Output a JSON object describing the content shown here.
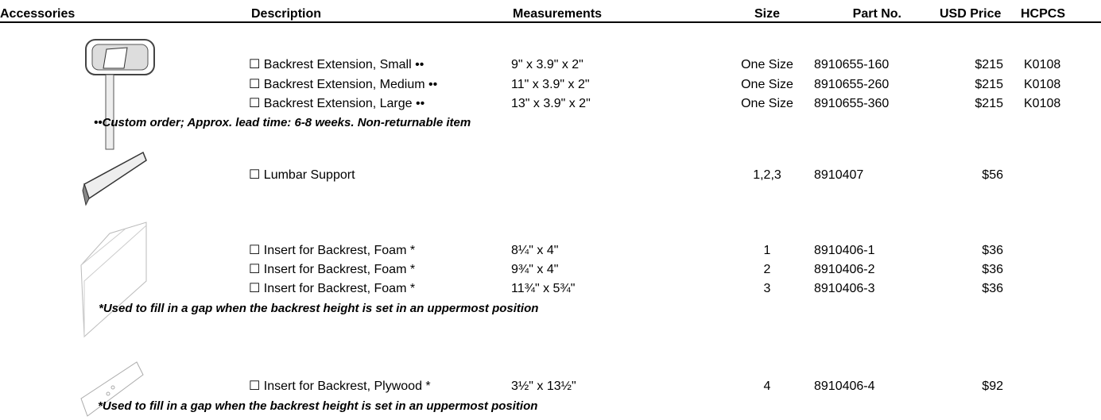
{
  "header": {
    "accessories": "Accessories",
    "description": "Description",
    "measurements": "Measurements",
    "size": "Size",
    "part_no": "Part No.",
    "price": "USD Price",
    "hcpcs": "HCPCS"
  },
  "groups": [
    {
      "rows": [
        {
          "description": "☐ Backrest Extension, Small ••",
          "measurements": "9\" x 3.9\" x 2\"",
          "size": "One Size",
          "part_no": "8910655-160",
          "price": "$215",
          "hcpcs": "K0108"
        },
        {
          "description": "☐ Backrest Extension, Medium ••",
          "measurements": "11\" x 3.9\" x 2\"",
          "size": "One Size",
          "part_no": "8910655-260",
          "price": "$215",
          "hcpcs": "K0108"
        },
        {
          "description": "☐ Backrest Extension, Large ••",
          "measurements": "13\" x 3.9\" x 2\"",
          "size": "One Size",
          "part_no": "8910655-360",
          "price": "$215",
          "hcpcs": "K0108"
        }
      ],
      "note": "••Custom order; Approx. lead time: 6-8 weeks. Non-returnable item"
    },
    {
      "rows": [
        {
          "description": "☐ Lumbar Support",
          "size": "1,2,3",
          "part_no": "8910407",
          "price": "$56"
        }
      ]
    },
    {
      "rows": [
        {
          "description": "☐ Insert for Backrest, Foam *",
          "measurements": "8¼\" x 4\"",
          "size": "1",
          "part_no": "8910406-1",
          "price": "$36"
        },
        {
          "description": "☐ Insert for Backrest, Foam *",
          "measurements": "9¾\" x 4\"",
          "size": "2",
          "part_no": "8910406-2",
          "price": "$36"
        },
        {
          "description": "☐ Insert for Backrest, Foam *",
          "measurements": "11¾\" x 5¾\"",
          "size": "3",
          "part_no": "8910406-3",
          "price": "$36"
        }
      ],
      "note": "*Used to fill in a gap when the backrest height is set in an uppermost position"
    },
    {
      "rows": [
        {
          "description": "☐ Insert for Backrest, Plywood *",
          "measurements": "3½\" x 13½\"",
          "size": "4",
          "part_no": "8910406-4",
          "price": "$92"
        }
      ],
      "note": "*Used to fill in a gap when the backrest height is set in an uppermost position"
    }
  ]
}
